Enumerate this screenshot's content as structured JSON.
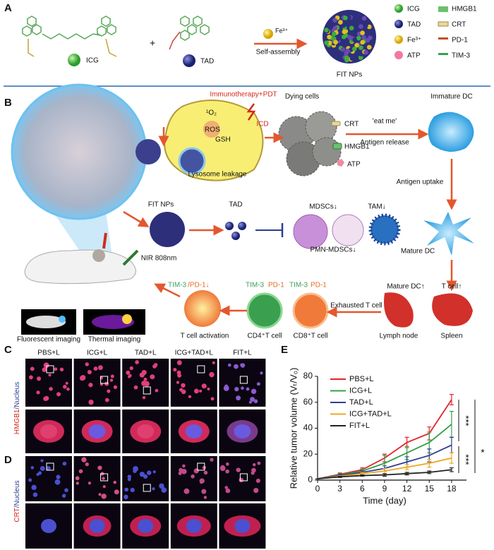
{
  "panel_a": {
    "label": "A",
    "icg": "ICG",
    "plus": "+",
    "tad": "TAD",
    "fe": "Fe³⁺",
    "self_assembly": "Self-assembly",
    "fit_nps": "FIT NPs",
    "legend": [
      "ICG",
      "TAD",
      "Fe³⁺",
      "ATP",
      "HMGB1",
      "CRT",
      "PD-1",
      "TIM-3"
    ]
  },
  "panel_b": {
    "label": "B",
    "immunotherapy": "Immunotherapy+PDT",
    "dying_cells": "Dying cells",
    "immature_dc": "Immature DC",
    "icd": "ICD",
    "singlet_oxygen": "¹O₂",
    "ros": "ROS",
    "gsh": "GSH",
    "lysosome": "Lysosome leakage",
    "crt": "CRT",
    "hmgb1": "HMGB1",
    "atp": "ATP",
    "eat_me": "'eat me'",
    "antigen_release": "Antigen release",
    "antigen_uptake": "Antigen uptake",
    "fit_nps": "FIT NPs",
    "tad": "TAD",
    "mdscs": "MDSCs↓",
    "tam": "TAM↓",
    "nir": "NIR 808nm",
    "pmn_mdscs": "PMN-MDSCs↓",
    "mature_dc": "Mature DC",
    "mature_dc_up": "Mature DC↑",
    "t_cell_up": "T cell↑",
    "tim3_a": "TIM-3",
    "pd1_a": "/PD-1↓",
    "tim3_b": "TIM-3",
    "pd1_b": "PD-1",
    "tim3_c": "TIM-3",
    "pd1_c": "PD-1",
    "exhausted": "Exhausted T cell",
    "fluorescent": "Fluorescent imaging",
    "thermal": "Thermal imaging",
    "activation": "T cell activation",
    "cd4": "CD4⁺T cell",
    "cd8": "CD8⁺T cell",
    "lymph": "Lymph node",
    "spleen": "Spleen"
  },
  "panel_c": {
    "label": "C",
    "columns": [
      "PBS+L",
      "ICG+L",
      "TAD+L",
      "ICG+TAD+L",
      "FIT+L"
    ],
    "stain": "HMGB1",
    "counterstain": "/Nucleus"
  },
  "panel_d": {
    "label": "D",
    "stain": "CRT",
    "counterstain": "/Nucleus"
  },
  "panel_e": {
    "label": "E",
    "significance": [
      "***",
      "***",
      "*"
    ]
  },
  "chart_data": {
    "type": "line",
    "xlabel": "Time (day)",
    "ylabel": "Relative tumor volume (Vₜ/V₀)",
    "x": [
      0,
      3,
      6,
      9,
      12,
      15,
      18
    ],
    "xlim": [
      0,
      20
    ],
    "xticks": [
      0,
      3,
      6,
      9,
      12,
      15,
      18
    ],
    "ylim": [
      0,
      80
    ],
    "yticks": [
      0,
      20,
      40,
      60,
      80
    ],
    "legend": "upper left",
    "series": [
      {
        "name": "PBS+L",
        "color": "#e3242b",
        "values": [
          1,
          4.5,
          8,
          17,
          29,
          36,
          62
        ],
        "errors": [
          0,
          1,
          1.5,
          3,
          4,
          5,
          4
        ]
      },
      {
        "name": "ICG+L",
        "color": "#33a045",
        "values": [
          1,
          4,
          7,
          13,
          21,
          29,
          43
        ],
        "errors": [
          0,
          1,
          1.5,
          6,
          5,
          8,
          10
        ]
      },
      {
        "name": "TAD+L",
        "color": "#2c3f91",
        "values": [
          1,
          3.5,
          6,
          9,
          14,
          19,
          27
        ],
        "errors": [
          0,
          1,
          1,
          2,
          4,
          5,
          6
        ]
      },
      {
        "name": "ICG+TAD+L",
        "color": "#f0a51f",
        "values": [
          1,
          3,
          5,
          7,
          10,
          13,
          17
        ],
        "errors": [
          0,
          0.5,
          1,
          2,
          2,
          3,
          4
        ]
      },
      {
        "name": "FIT+L",
        "color": "#222222",
        "values": [
          1,
          2.5,
          3.5,
          4,
          5,
          6,
          8
        ],
        "errors": [
          0,
          0.5,
          0.5,
          1,
          1,
          1,
          1.5
        ]
      }
    ]
  }
}
